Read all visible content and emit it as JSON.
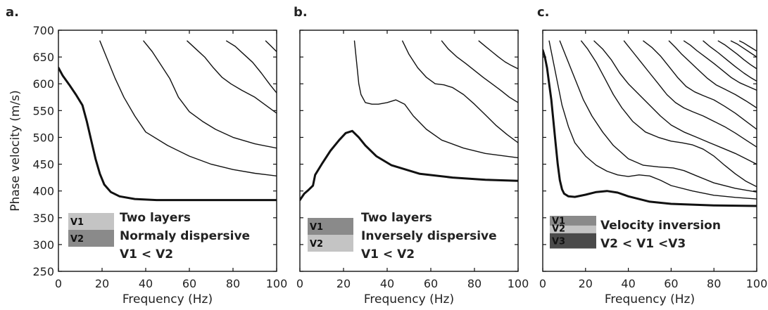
{
  "chart_data": [
    {
      "type": "line",
      "panel_label": "a.",
      "xlabel": "Frequency (Hz)",
      "ylabel": "Phase velocity (m/s)",
      "xlim": [
        0,
        100
      ],
      "ylim": [
        250,
        700
      ],
      "xticks": [
        0,
        20,
        40,
        60,
        80,
        100
      ],
      "yticks": [
        250,
        300,
        350,
        400,
        450,
        500,
        550,
        600,
        650,
        700
      ],
      "show_y_tick_labels": true,
      "annotation": [
        "Two layers",
        "Normaly dispersive",
        "V1 < V2"
      ],
      "layers": [
        {
          "label": "V1",
          "color": "#c4c4c4",
          "rel_height": 1
        },
        {
          "label": "V2",
          "color": "#8a8a8a",
          "rel_height": 1
        }
      ],
      "series": [
        {
          "role": "fundamental",
          "x": [
            0,
            2,
            5,
            8,
            11,
            13,
            15,
            17,
            19,
            21,
            24,
            28,
            35,
            45,
            60,
            80,
            100
          ],
          "y": [
            630,
            615,
            598,
            580,
            560,
            530,
            495,
            460,
            432,
            412,
            398,
            390,
            385,
            383,
            383,
            383,
            383
          ]
        },
        {
          "role": "higher",
          "x": [
            19,
            22,
            26,
            30,
            35,
            40,
            50,
            60,
            70,
            80,
            90,
            100
          ],
          "y": [
            680,
            650,
            610,
            575,
            540,
            510,
            485,
            465,
            450,
            440,
            433,
            428
          ]
        },
        {
          "role": "higher",
          "x": [
            39,
            43,
            47,
            51,
            55,
            60,
            66,
            72,
            80,
            90,
            100
          ],
          "y": [
            680,
            660,
            635,
            610,
            575,
            548,
            530,
            515,
            500,
            488,
            480
          ]
        },
        {
          "role": "higher",
          "x": [
            59,
            63,
            67,
            71,
            75,
            79,
            84,
            90,
            95,
            100
          ],
          "y": [
            680,
            665,
            650,
            630,
            612,
            600,
            588,
            575,
            560,
            545
          ]
        },
        {
          "role": "higher",
          "x": [
            77,
            81,
            85,
            89,
            93,
            97,
            100
          ],
          "y": [
            680,
            670,
            655,
            640,
            620,
            598,
            583
          ]
        },
        {
          "role": "higher",
          "x": [
            95,
            97,
            100
          ],
          "y": [
            680,
            672,
            660
          ]
        }
      ]
    },
    {
      "type": "line",
      "panel_label": "b.",
      "xlabel": "Frequency (Hz)",
      "ylabel": "",
      "xlim": [
        0,
        100
      ],
      "ylim": [
        250,
        700
      ],
      "xticks": [
        0,
        20,
        40,
        60,
        80,
        100
      ],
      "yticks": [
        250,
        300,
        350,
        400,
        450,
        500,
        550,
        600,
        650,
        700
      ],
      "show_y_tick_labels": false,
      "annotation": [
        "Two layers",
        "Inversely dispersive",
        "V1 < V2"
      ],
      "layers": [
        {
          "label": "V1",
          "color": "#8a8a8a",
          "rel_height": 1
        },
        {
          "label": "V2",
          "color": "#c4c4c4",
          "rel_height": 1
        }
      ],
      "series": [
        {
          "role": "fundamental",
          "x": [
            0,
            2,
            4,
            6,
            7,
            10,
            14,
            18,
            21,
            24,
            27,
            30,
            35,
            42,
            55,
            70,
            85,
            100
          ],
          "y": [
            383,
            395,
            402,
            410,
            430,
            450,
            475,
            495,
            508,
            512,
            500,
            485,
            465,
            448,
            432,
            425,
            421,
            419
          ]
        },
        {
          "role": "higher",
          "x": [
            25,
            26,
            27,
            28,
            30,
            33,
            36,
            40,
            44,
            48,
            52,
            58,
            65,
            75,
            85,
            100
          ],
          "y": [
            680,
            640,
            600,
            580,
            565,
            562,
            562,
            565,
            570,
            562,
            540,
            515,
            495,
            480,
            470,
            462
          ]
        },
        {
          "role": "higher",
          "x": [
            47,
            50,
            54,
            58,
            62,
            66,
            70,
            75,
            80,
            85,
            90,
            95,
            100
          ],
          "y": [
            680,
            655,
            630,
            612,
            600,
            598,
            593,
            580,
            562,
            542,
            522,
            505,
            490
          ]
        },
        {
          "role": "higher",
          "x": [
            65,
            68,
            72,
            76,
            80,
            84,
            88,
            92,
            96,
            100
          ],
          "y": [
            680,
            665,
            650,
            638,
            625,
            612,
            600,
            588,
            575,
            565
          ]
        },
        {
          "role": "higher",
          "x": [
            82,
            85,
            88,
            91,
            94,
            97,
            100
          ],
          "y": [
            680,
            670,
            660,
            650,
            641,
            634,
            628
          ]
        }
      ]
    },
    {
      "type": "line",
      "panel_label": "c.",
      "xlabel": "Frequency (Hz)",
      "ylabel": "",
      "xlim": [
        0,
        100
      ],
      "ylim": [
        250,
        700
      ],
      "xticks": [
        0,
        20,
        40,
        60,
        80,
        100
      ],
      "yticks": [
        250,
        300,
        350,
        400,
        450,
        500,
        550,
        600,
        650,
        700
      ],
      "show_y_tick_labels": false,
      "annotation": [
        "Velocity inversion",
        "V2 < V1 <V3"
      ],
      "layers": [
        {
          "label": "V1",
          "color": "#8a8a8a",
          "rel_height": 0.9
        },
        {
          "label": "V2",
          "color": "#c4c4c4",
          "rel_height": 0.7
        },
        {
          "label": "V3",
          "color": "#4a4a4a",
          "rel_height": 1.4
        }
      ],
      "series": [
        {
          "role": "fundamental",
          "x": [
            0,
            1,
            2,
            3,
            4,
            5,
            6,
            7,
            8,
            9,
            10,
            12,
            15,
            20,
            25,
            30,
            35,
            40,
            50,
            60,
            80,
            100
          ],
          "y": [
            663,
            650,
            630,
            600,
            570,
            530,
            490,
            450,
            420,
            403,
            395,
            390,
            389,
            393,
            398,
            400,
            397,
            390,
            380,
            376,
            373,
            372
          ]
        },
        {
          "role": "higher",
          "x": [
            3,
            5,
            7,
            9,
            12,
            15,
            20,
            25,
            30,
            35,
            40,
            45,
            50,
            55,
            60,
            70,
            80,
            90,
            100
          ],
          "y": [
            680,
            640,
            600,
            560,
            520,
            490,
            465,
            448,
            437,
            430,
            427,
            430,
            428,
            420,
            410,
            400,
            392,
            388,
            385
          ]
        },
        {
          "role": "higher",
          "x": [
            8,
            11,
            15,
            19,
            23,
            28,
            33,
            40,
            47,
            54,
            61,
            66,
            72,
            80,
            90,
            100
          ],
          "y": [
            680,
            650,
            610,
            570,
            540,
            510,
            485,
            460,
            448,
            445,
            443,
            438,
            428,
            415,
            405,
            398
          ]
        },
        {
          "role": "higher",
          "x": [
            18,
            21,
            25,
            29,
            33,
            37,
            42,
            48,
            54,
            60,
            65,
            70,
            75,
            80,
            85,
            90,
            95,
            100
          ],
          "y": [
            680,
            665,
            640,
            610,
            580,
            555,
            530,
            510,
            500,
            493,
            490,
            486,
            478,
            465,
            448,
            432,
            418,
            408
          ]
        },
        {
          "role": "higher",
          "x": [
            24,
            28,
            32,
            36,
            40,
            45,
            50,
            55,
            60,
            66,
            72,
            78,
            84,
            90,
            95,
            100
          ],
          "y": [
            680,
            665,
            645,
            620,
            600,
            580,
            560,
            540,
            523,
            510,
            500,
            490,
            480,
            470,
            460,
            450
          ]
        },
        {
          "role": "higher",
          "x": [
            38,
            42,
            46,
            50,
            54,
            58,
            62,
            66,
            70,
            75,
            80,
            85,
            90,
            95,
            100
          ],
          "y": [
            680,
            660,
            640,
            620,
            600,
            580,
            565,
            555,
            548,
            540,
            530,
            520,
            508,
            495,
            482
          ]
        },
        {
          "role": "higher",
          "x": [
            47,
            51,
            55,
            59,
            63,
            67,
            71,
            75,
            80,
            85,
            90,
            95,
            100
          ],
          "y": [
            680,
            668,
            652,
            632,
            612,
            595,
            585,
            578,
            570,
            558,
            545,
            530,
            515
          ]
        },
        {
          "role": "higher",
          "x": [
            59,
            62,
            65,
            69,
            73,
            77,
            81,
            85,
            90,
            95,
            100
          ],
          "y": [
            680,
            668,
            655,
            640,
            625,
            610,
            598,
            590,
            580,
            568,
            555
          ]
        },
        {
          "role": "higher",
          "x": [
            66,
            69,
            72,
            76,
            80,
            84,
            88,
            92,
            96,
            100
          ],
          "y": [
            680,
            672,
            662,
            650,
            638,
            625,
            612,
            602,
            595,
            588
          ]
        },
        {
          "role": "higher",
          "x": [
            75,
            78,
            82,
            86,
            90,
            94,
            97,
            100
          ],
          "y": [
            680,
            670,
            658,
            645,
            632,
            620,
            612,
            605
          ]
        },
        {
          "role": "higher",
          "x": [
            82,
            85,
            88,
            91,
            94,
            97,
            100
          ],
          "y": [
            680,
            673,
            664,
            655,
            645,
            636,
            628
          ]
        },
        {
          "role": "higher",
          "x": [
            88,
            91,
            94,
            97,
            100
          ],
          "y": [
            680,
            674,
            666,
            658,
            650
          ]
        },
        {
          "role": "higher",
          "x": [
            92,
            94,
            96,
            98,
            100
          ],
          "y": [
            680,
            676,
            671,
            666,
            661
          ]
        }
      ]
    }
  ]
}
